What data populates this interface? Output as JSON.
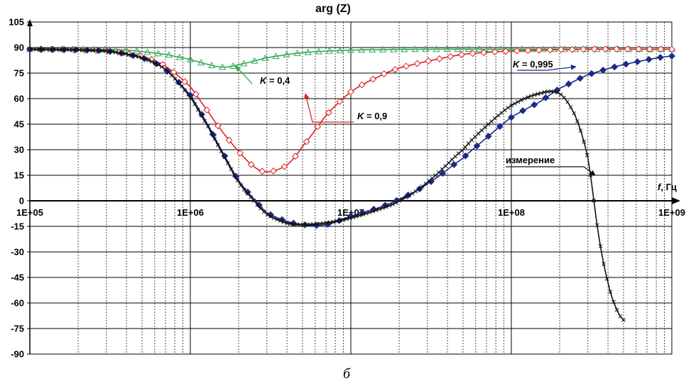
{
  "chart_data": {
    "type": "line",
    "title": "arg (Z)",
    "xlabel_italic": "f",
    "xlabel_unit": ", Гц",
    "caption": "б",
    "x_scale": "log",
    "xlim": [
      100000,
      1000000000
    ],
    "ylim": [
      -90,
      105
    ],
    "y_ticks": [
      105,
      90,
      75,
      60,
      45,
      30,
      15,
      0,
      -15,
      -30,
      -45,
      -60,
      -75,
      -90
    ],
    "y_tick_labels": [
      "105",
      "90",
      "75",
      "60",
      "45",
      "30",
      "15",
      "0",
      "-15",
      "-30",
      "-45",
      "-60",
      "-75",
      "-90"
    ],
    "x_ticks": [
      100000,
      1000000,
      10000000,
      100000000,
      1000000000
    ],
    "x_tick_labels": [
      "1E+05",
      "1E+06",
      "1E+07",
      "1E+08",
      "1E+09"
    ],
    "grid": true,
    "series": [
      {
        "color": "#33aa55",
        "marker": "triangle",
        "x": [
          100000,
          200000,
          400000,
          700000,
          1000000,
          1300000,
          1600000,
          2000000,
          3000000,
          5000000,
          10000000,
          30000000,
          100000000,
          1000000000
        ],
        "y": [
          89,
          89,
          88.5,
          86,
          83,
          80,
          78.5,
          80,
          84,
          87,
          88.5,
          89,
          89,
          89
        ]
      },
      {
        "color": "#e02020",
        "marker": "diamond-open",
        "x": [
          100000,
          300000,
          500000,
          700000,
          1000000,
          1300000,
          1600000,
          2000000,
          2500000,
          3000000,
          4000000,
          5000000,
          7000000,
          10000000,
          15000000,
          20000000,
          30000000,
          50000000,
          100000000,
          300000000,
          1000000000
        ],
        "y": [
          89,
          88,
          85,
          79,
          67,
          52,
          40,
          29,
          20,
          17,
          21,
          32,
          50,
          64,
          73,
          78,
          82,
          86,
          88,
          89,
          89
        ]
      },
      {
        "color": "#1a2a8a",
        "marker": "diamond-filled",
        "x": [
          100000,
          300000,
          500000,
          700000,
          1000000,
          1300000,
          1600000,
          2000000,
          2500000,
          3000000,
          4000000,
          5000000,
          7000000,
          10000000,
          15000000,
          20000000,
          30000000,
          50000000,
          70000000,
          100000000,
          150000000,
          200000000,
          300000000,
          500000000,
          1000000000
        ],
        "y": [
          89,
          88,
          84,
          77,
          62,
          44,
          28,
          12,
          1,
          -7,
          -12,
          -14,
          -14,
          -9,
          -4,
          1,
          10,
          25,
          37,
          49,
          58,
          66,
          74,
          80,
          85
        ]
      },
      {
        "color": "#111111",
        "marker": "cross",
        "x": [
          100000,
          300000,
          500000,
          700000,
          1000000,
          1300000,
          1600000,
          2000000,
          2500000,
          3000000,
          4000000,
          5000000,
          7000000,
          10000000,
          15000000,
          20000000,
          30000000,
          50000000,
          70000000,
          100000000,
          150000000,
          200000000,
          250000000,
          300000000,
          350000000,
          400000000,
          450000000,
          500000000
        ],
        "y": [
          89,
          88,
          84,
          77,
          61,
          43,
          27,
          11,
          0,
          -8,
          -13,
          -14,
          -13,
          -10,
          -5,
          0,
          11,
          30,
          44,
          56,
          63,
          63,
          50,
          25,
          -20,
          -48,
          -63,
          -70
        ]
      }
    ],
    "annotations": [
      {
        "label_italic": "K",
        "label_rest": " = 0,4",
        "series": 0
      },
      {
        "label_italic": "K",
        "label_rest": " = 0,9",
        "series": 1
      },
      {
        "label_italic": "K",
        "label_rest": " = 0,995",
        "series": 2
      },
      {
        "label_italic": "",
        "label_rest": "измерение",
        "series": 3
      }
    ]
  }
}
